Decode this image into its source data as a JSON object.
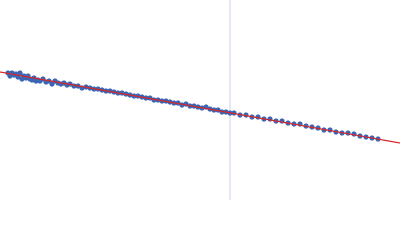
{
  "chart_data": {
    "type": "scatter",
    "xlim": [
      0,
      400
    ],
    "ylim": [
      0,
      200
    ],
    "vline": {
      "x": 230,
      "color": "#c8d0e4"
    },
    "x": [
      8,
      10,
      12,
      14,
      16,
      18,
      20,
      22,
      24,
      26,
      28,
      30,
      32,
      34,
      36,
      38,
      40,
      43,
      46,
      49,
      52,
      55,
      58,
      61,
      64,
      67,
      70,
      74,
      78,
      82,
      86,
      90,
      94,
      98,
      102,
      106,
      110,
      114,
      118,
      122,
      126,
      130,
      134,
      138,
      142,
      146,
      150,
      154,
      158,
      162,
      166,
      170,
      174,
      178,
      182,
      186,
      190,
      194,
      198,
      202,
      206,
      210,
      214,
      218,
      222,
      226,
      230,
      234,
      240,
      246,
      252,
      258,
      264,
      270,
      276,
      282,
      288,
      294,
      300,
      306,
      312,
      318,
      324,
      330,
      336,
      342,
      348,
      354,
      360,
      366,
      372,
      378
    ],
    "series": [
      {
        "color": "#3c66b4",
        "values": [
          127,
          124,
          127,
          125,
          126,
          123,
          127,
          121,
          124,
          122,
          124,
          121,
          120,
          122,
          119,
          120,
          119,
          121,
          118,
          119,
          116,
          119,
          117,
          116,
          117,
          115,
          116,
          114,
          114,
          112,
          113,
          112,
          111,
          111,
          110,
          109,
          109,
          108,
          107,
          107,
          106,
          105,
          104,
          104,
          103,
          102,
          102,
          100,
          100,
          99,
          99,
          98,
          97,
          97,
          95,
          96,
          94,
          94,
          93,
          92,
          93,
          91,
          90,
          90,
          88,
          88,
          87,
          87,
          85,
          85,
          83,
          83,
          81,
          81,
          79,
          79,
          77,
          76,
          76,
          74,
          73,
          72,
          70,
          70,
          68,
          67,
          67,
          66,
          64,
          63,
          62,
          61
        ]
      }
    ],
    "fit": {
      "x": [
        0,
        400
      ],
      "values": [
        128,
        57
      ],
      "color": "#d62728"
    }
  }
}
